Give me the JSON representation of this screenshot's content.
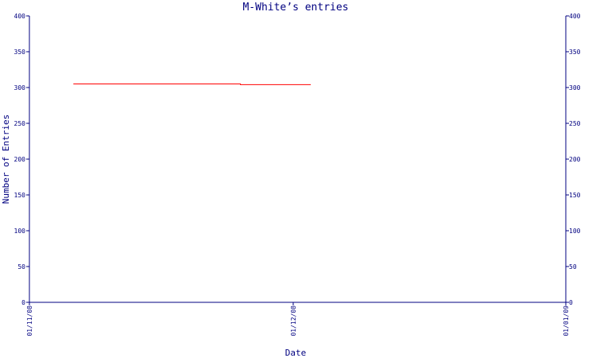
{
  "chart_data": {
    "type": "line",
    "title": "M-White’s entries",
    "xlabel": "Date",
    "ylabel": "Number of Entries",
    "ylim": [
      0,
      400
    ],
    "y_ticks": [
      0,
      50,
      100,
      150,
      200,
      250,
      300,
      350,
      400
    ],
    "x_ticks": [
      "01/11/08",
      "01/12/08",
      "01/01/09"
    ],
    "x_range": [
      "2008-11-01",
      "2009-01-01"
    ],
    "series": [
      {
        "color": "#ff0000",
        "points": [
          {
            "x": "2008-11-06",
            "y": 305
          },
          {
            "x": "2008-11-25",
            "y": 305
          },
          {
            "x": "2008-11-25",
            "y": 304
          },
          {
            "x": "2008-12-03",
            "y": 304
          }
        ]
      }
    ],
    "grid": false,
    "axis_color": "#000080",
    "title_color": "#000080"
  }
}
